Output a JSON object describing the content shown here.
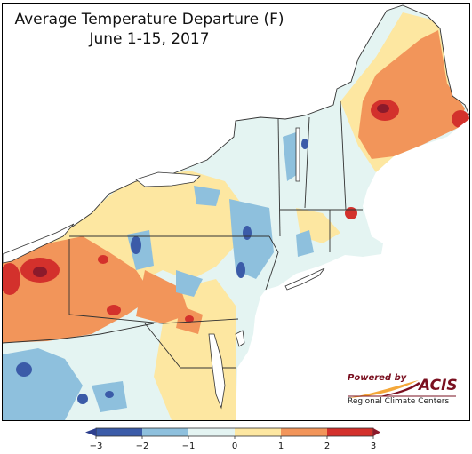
{
  "title": {
    "line1": "Average Temperature Departure (F)",
    "line2": "June 1-15, 2017"
  },
  "logo": {
    "powered_by": "Powered by",
    "name": "ACIS",
    "subtitle": "Regional Climate Centers",
    "colors": {
      "text": "#7a1020",
      "swoosh_light": "#f4a83a",
      "swoosh_dark": "#7a1020"
    }
  },
  "legend": {
    "ticks": [
      "−3",
      "−2",
      "−1",
      "0",
      "1",
      "2",
      "3"
    ],
    "bins": [
      {
        "range": "−3 to −2",
        "color": "#3b5ba8"
      },
      {
        "range": "−2 to −1",
        "color": "#8ec0dd"
      },
      {
        "range": "−1 to 0",
        "color": "#e4f4f2"
      },
      {
        "range": "0 to 1",
        "color": "#fde7a1"
      },
      {
        "range": "1 to 2",
        "color": "#f2955a"
      },
      {
        "range": "2 to 3",
        "color": "#d3312c"
      }
    ],
    "extend_low_color": "#2d3f8e",
    "extend_high_color": "#8b1a2b"
  },
  "colors": {
    "water": "#ffffff",
    "outside": "#ffffff",
    "state_border": "#333333",
    "county_border": "#8a8a8a"
  }
}
